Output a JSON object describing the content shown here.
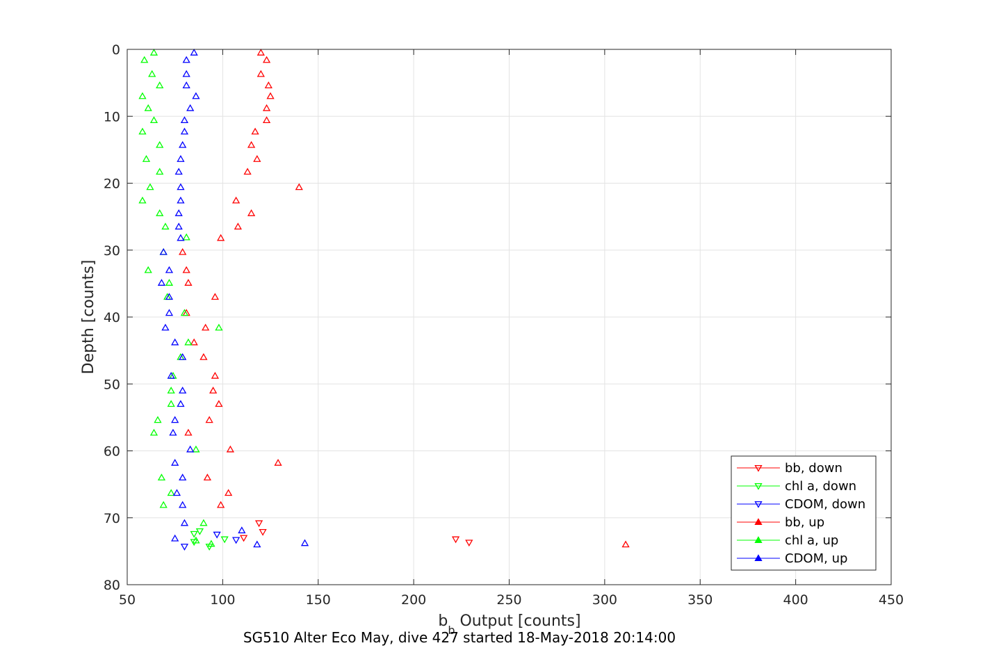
{
  "chart_data": {
    "type": "scatter",
    "xlabel_main": "b",
    "xlabel_sub": "b",
    "xlabel_rest": " Output [counts]",
    "ylabel": "Depth [counts]",
    "caption": "SG510 Alter Eco May, dive 427 started 18-May-2018 20:14:00",
    "xlim": [
      50,
      450
    ],
    "ylim": [
      0,
      80
    ],
    "y_reversed": true,
    "xticks": [
      50,
      100,
      150,
      200,
      250,
      300,
      350,
      400,
      450
    ],
    "yticks": [
      0,
      10,
      20,
      30,
      40,
      50,
      60,
      70,
      80
    ],
    "grid": true,
    "legend_position": "lower-right",
    "series": [
      {
        "name": "bb, down",
        "color": "#ff0000",
        "marker": "triangle-down",
        "points": [
          [
            222,
            73.2
          ],
          [
            229,
            73.7
          ],
          [
            111,
            73.0
          ],
          [
            121,
            72.1
          ],
          [
            119,
            70.8
          ]
        ]
      },
      {
        "name": "chl a, down",
        "color": "#00ff00",
        "marker": "triangle-down",
        "points": [
          [
            101,
            73.2
          ],
          [
            93,
            74.3
          ],
          [
            85,
            73.6
          ],
          [
            85,
            72.4
          ],
          [
            88,
            72.0
          ]
        ]
      },
      {
        "name": "CDOM, down",
        "color": "#0000ff",
        "marker": "triangle-down",
        "points": [
          [
            80,
            74.3
          ],
          [
            107,
            73.3
          ],
          [
            97,
            72.5
          ]
        ]
      },
      {
        "name": "bb, up",
        "color": "#ff0000",
        "marker": "triangle-up",
        "points": [
          [
            120,
            0.5
          ],
          [
            123,
            1.6
          ],
          [
            120,
            3.7
          ],
          [
            124,
            5.4
          ],
          [
            125,
            7.0
          ],
          [
            123,
            8.8
          ],
          [
            123,
            10.6
          ],
          [
            117,
            12.3
          ],
          [
            115,
            14.3
          ],
          [
            118,
            16.4
          ],
          [
            113,
            18.3
          ],
          [
            140,
            20.6
          ],
          [
            107,
            22.6
          ],
          [
            115,
            24.5
          ],
          [
            108,
            26.5
          ],
          [
            99,
            28.2
          ],
          [
            79,
            30.3
          ],
          [
            81,
            33.0
          ],
          [
            82,
            34.9
          ],
          [
            96,
            37.0
          ],
          [
            81,
            39.4
          ],
          [
            91,
            41.6
          ],
          [
            85,
            43.8
          ],
          [
            90,
            46.0
          ],
          [
            96,
            48.8
          ],
          [
            95,
            51.0
          ],
          [
            98,
            53.0
          ],
          [
            93,
            55.4
          ],
          [
            82,
            57.3
          ],
          [
            104,
            59.8
          ],
          [
            129,
            61.8
          ],
          [
            92,
            64.0
          ],
          [
            103,
            66.3
          ],
          [
            99,
            68.1
          ],
          [
            311,
            74.0
          ]
        ]
      },
      {
        "name": "chl a, up",
        "color": "#00ff00",
        "marker": "triangle-up",
        "points": [
          [
            64,
            0.5
          ],
          [
            59,
            1.6
          ],
          [
            63,
            3.7
          ],
          [
            67,
            5.4
          ],
          [
            58,
            7.0
          ],
          [
            61,
            8.8
          ],
          [
            64,
            10.6
          ],
          [
            58,
            12.3
          ],
          [
            67,
            14.3
          ],
          [
            60,
            16.4
          ],
          [
            67,
            18.3
          ],
          [
            62,
            20.6
          ],
          [
            58,
            22.6
          ],
          [
            67,
            24.5
          ],
          [
            70,
            26.5
          ],
          [
            81,
            28.1
          ],
          [
            69,
            30.3
          ],
          [
            61,
            33.0
          ],
          [
            72,
            34.9
          ],
          [
            71,
            37.0
          ],
          [
            80,
            39.4
          ],
          [
            98,
            41.6
          ],
          [
            82,
            43.8
          ],
          [
            78,
            46.0
          ],
          [
            74,
            48.8
          ],
          [
            73,
            51.0
          ],
          [
            73,
            53.0
          ],
          [
            66,
            55.4
          ],
          [
            64,
            57.3
          ],
          [
            86,
            59.8
          ],
          [
            68,
            64.0
          ],
          [
            73,
            66.3
          ],
          [
            69,
            68.1
          ],
          [
            90,
            70.8
          ],
          [
            94,
            73.9
          ],
          [
            86,
            73.4
          ]
        ]
      },
      {
        "name": "CDOM, up",
        "color": "#0000ff",
        "marker": "triangle-up",
        "points": [
          [
            85,
            0.5
          ],
          [
            81,
            1.6
          ],
          [
            81,
            3.7
          ],
          [
            81,
            5.4
          ],
          [
            86,
            7.0
          ],
          [
            83,
            8.8
          ],
          [
            80,
            10.6
          ],
          [
            80,
            12.3
          ],
          [
            79,
            14.3
          ],
          [
            78,
            16.4
          ],
          [
            77,
            18.3
          ],
          [
            78,
            20.6
          ],
          [
            78,
            22.6
          ],
          [
            77,
            24.5
          ],
          [
            77,
            26.5
          ],
          [
            78,
            28.2
          ],
          [
            69,
            30.3
          ],
          [
            72,
            33.0
          ],
          [
            68,
            34.9
          ],
          [
            72,
            37.0
          ],
          [
            72,
            39.4
          ],
          [
            70,
            41.6
          ],
          [
            75,
            43.8
          ],
          [
            79,
            46.0
          ],
          [
            73,
            48.8
          ],
          [
            79,
            51.0
          ],
          [
            78,
            53.0
          ],
          [
            75,
            55.4
          ],
          [
            74,
            57.3
          ],
          [
            83,
            59.8
          ],
          [
            75,
            61.8
          ],
          [
            79,
            64.0
          ],
          [
            76,
            66.3
          ],
          [
            79,
            68.1
          ],
          [
            80,
            70.8
          ],
          [
            110,
            71.9
          ],
          [
            75,
            73.1
          ],
          [
            143,
            73.8
          ],
          [
            118,
            74.0
          ]
        ]
      }
    ]
  }
}
